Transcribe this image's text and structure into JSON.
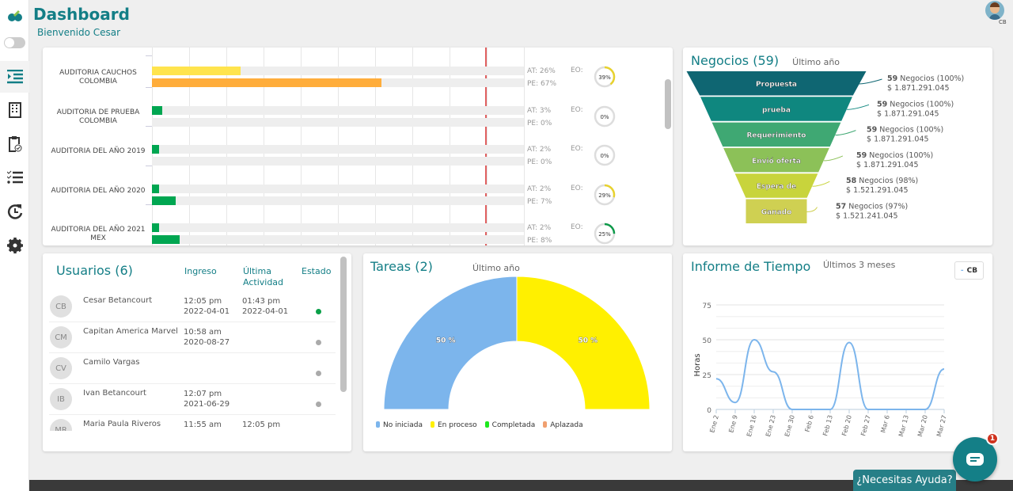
{
  "header": {
    "title": "Dashboard",
    "welcome": "Bienvenido Cesar",
    "user_initials": "CB"
  },
  "sidebar": {
    "items": [
      {
        "icon": "list-indent-icon",
        "active": true
      },
      {
        "icon": "building-icon"
      },
      {
        "icon": "clipboard-check-icon"
      },
      {
        "icon": "checklist-icon"
      },
      {
        "icon": "clock-refresh-icon"
      },
      {
        "icon": "gear-icon"
      }
    ]
  },
  "audits": {
    "items": [
      {
        "name": "AUDITORIA CAUCHOS COLOMBIA",
        "at": 26,
        "pe": 67,
        "at_label": "AT: 26%",
        "pe_label": "PE: 67%",
        "eo_label": "EO:",
        "eo": 39,
        "eo_text": "39%",
        "at_color": "#ffe44d",
        "pe_color": "#ffad3b",
        "ring_color": "#e8d22e"
      },
      {
        "name": "AUDITORIA DE PRUEBA COLOMBIA",
        "at": 3,
        "pe": 0,
        "at_label": "AT: 3%",
        "pe_label": "PE: 0%",
        "eo_label": "EO:",
        "eo": 0,
        "eo_text": "0%",
        "at_color": "#00a651",
        "pe_color": "#00a651",
        "ring_color": "#e8d22e"
      },
      {
        "name": "AUDITORIA DEL AÑO 2019",
        "at": 2,
        "pe": 0,
        "at_label": "AT: 2%",
        "pe_label": "PE: 0%",
        "eo_label": "EO:",
        "eo": 0,
        "eo_text": "0%",
        "at_color": "#00a651",
        "pe_color": "#00a651",
        "ring_color": "#e8d22e"
      },
      {
        "name": "AUDITORIA DEL AÑO 2020",
        "at": 2,
        "pe": 7,
        "at_label": "AT: 2%",
        "pe_label": "PE: 7%",
        "eo_label": "EO:",
        "eo": 29,
        "eo_text": "29%",
        "at_color": "#00a651",
        "pe_color": "#00a651",
        "ring_color": "#e8d22e"
      },
      {
        "name": "AUDITORIA DEL AÑO 2021 MEX",
        "at": 2,
        "pe": 8,
        "at_label": "AT: 2%",
        "pe_label": "PE: 8%",
        "eo_label": "EO:",
        "eo": 25,
        "eo_text": "25%",
        "at_color": "#00a651",
        "pe_color": "#00a651",
        "ring_color": "#0e9a4a"
      }
    ]
  },
  "negocios": {
    "title": "Negocios (59)",
    "period": "Último año",
    "stages": [
      {
        "name": "Propuesta",
        "count": "59",
        "label": "Negocios (100%)",
        "amount": "$ 1.871.291.045",
        "color": "#0f6672"
      },
      {
        "name": "prueba",
        "count": "59",
        "label": "Negocios (100%)",
        "amount": "$ 1.871.291.045",
        "color": "#0f877f"
      },
      {
        "name": "Requerimiento",
        "count": "59",
        "label": "Negocios (100%)",
        "amount": "$ 1.871.291.045",
        "color": "#3fa873"
      },
      {
        "name": "Envió oferta",
        "count": "59",
        "label": "Negocios (100%)",
        "amount": "$ 1.871.291.045",
        "color": "#8cc158"
      },
      {
        "name": "Espera de",
        "count": "58",
        "label": "Negocios (98%)",
        "amount": "$ 1.521.291.045",
        "color": "#c8d43c"
      },
      {
        "name": "Ganado",
        "count": "57",
        "label": "Negocios (97%)",
        "amount": "$ 1.521.241.045",
        "color": "#cfd052"
      }
    ]
  },
  "usuarios": {
    "title": "Usuarios (6)",
    "col_ingreso": "Ingreso",
    "col_ultima": "Última Actividad",
    "col_estado": "Estado",
    "rows": [
      {
        "initials": "CB",
        "name": "Cesar Betancourt",
        "in_time": "12:05 pm",
        "in_date": "2022-04-01",
        "last_time": "01:43 pm",
        "last_date": "2022-04-01",
        "status_color": "#0aa048"
      },
      {
        "initials": "CM",
        "name": "Capitan America Marvel",
        "in_time": "10:58 am",
        "in_date": "2020-08-27",
        "last_time": "",
        "last_date": "",
        "status_color": "#aaaaaa"
      },
      {
        "initials": "CV",
        "name": "Camilo Vargas",
        "in_time": "",
        "in_date": "",
        "last_time": "",
        "last_date": "",
        "status_color": "#aaaaaa"
      },
      {
        "initials": "IB",
        "name": "Ivan Betancourt",
        "in_time": "12:07 pm",
        "in_date": "2021-06-29",
        "last_time": "",
        "last_date": "",
        "status_color": "#aaaaaa"
      },
      {
        "initials": "MR",
        "name": "Maria Paula Riveros",
        "in_time": "11:55 am",
        "in_date": "",
        "last_time": "12:05 pm",
        "last_date": "",
        "status_color": "#aaaaaa"
      }
    ]
  },
  "tareas": {
    "title": "Tareas (2)",
    "period": "Último año",
    "slices": [
      {
        "name": "No iniciada",
        "value": 50,
        "label": "50 %",
        "color": "#7cb5ec"
      },
      {
        "name": "En proceso",
        "value": 50,
        "label": "50 %",
        "color": "#fff000"
      }
    ],
    "legend": [
      {
        "name": "No iniciada",
        "color": "#7cb5ec"
      },
      {
        "name": "En proceso",
        "color": "#fff000"
      },
      {
        "name": "Completada",
        "color": "#1ee81e"
      },
      {
        "name": "Aplazada",
        "color": "#f0a070"
      }
    ]
  },
  "tiempo": {
    "title": "Informe de Tiempo",
    "period": "Últimos 3 meses",
    "legend_btn": "CB"
  },
  "chart_data": {
    "type": "line",
    "ylabel": "Horas",
    "ylim": [
      0,
      75
    ],
    "yticks": [
      0,
      25,
      50,
      75
    ],
    "categories": [
      "Ene 2",
      "Ene 9",
      "Ene 16",
      "Ene 23",
      "Ene 30",
      "Feb 6",
      "Feb 13",
      "Feb 20",
      "Feb 27",
      "Mar 6",
      "Mar 13",
      "Mar 20",
      "Mar 27"
    ],
    "series": [
      {
        "name": "CB",
        "values": [
          22,
          5,
          50,
          27,
          0,
          0,
          0,
          48,
          0,
          0,
          0,
          0,
          29
        ],
        "color": "#7cb5ec"
      }
    ]
  },
  "help": {
    "label": "¿Necesitas Ayuda?",
    "badge": "1"
  }
}
